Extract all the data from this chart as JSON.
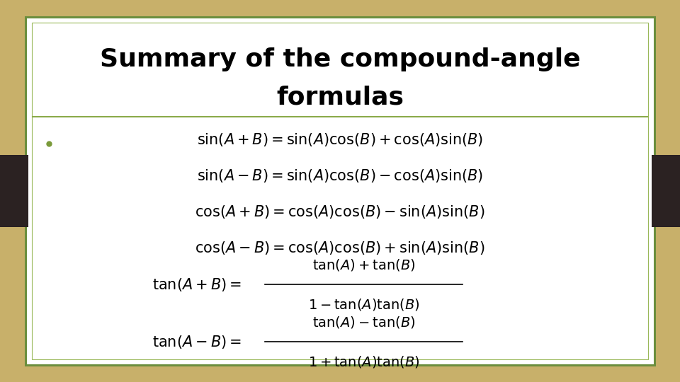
{
  "title_line1": "Summary of the compound-angle",
  "title_line2": "formulas",
  "background_outer": "#c8b06a",
  "background_inner": "#ffffff",
  "border_color_dark": "#6b8e3e",
  "border_color_light": "#9ab85a",
  "dark_tab_color": "#2b2222",
  "bullet_color": "#7a9a3a",
  "title_fontsize": 26,
  "formula_fontsize": 15,
  "tan_fontsize": 15,
  "separator_color": "#8aaa4a"
}
